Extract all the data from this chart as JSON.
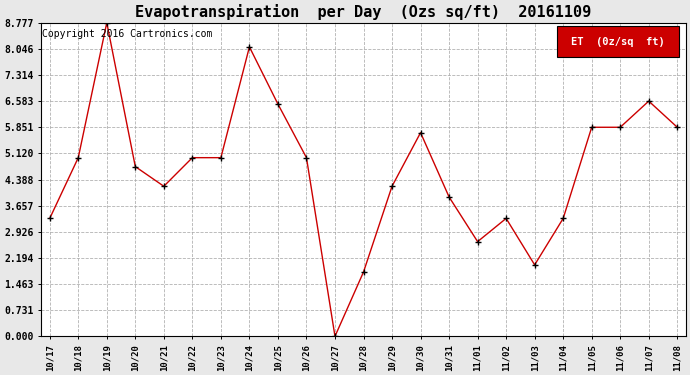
{
  "title": "Evapotranspiration  per Day  (Ozs sq/ft)  20161109",
  "copyright_text": "Copyright 2016 Cartronics.com",
  "legend_label": "ET  (0z/sq  ft)",
  "x_labels": [
    "10/17",
    "10/18",
    "10/19",
    "10/20",
    "10/21",
    "10/22",
    "10/23",
    "10/24",
    "10/25",
    "10/26",
    "10/27",
    "10/28",
    "10/29",
    "10/30",
    "10/31",
    "11/01",
    "11/02",
    "11/03",
    "11/04",
    "11/05",
    "11/06",
    "11/07",
    "11/08"
  ],
  "y_values": [
    3.3,
    5.0,
    8.777,
    4.75,
    4.2,
    5.0,
    5.0,
    8.1,
    6.5,
    5.0,
    0.0,
    1.8,
    4.2,
    5.7,
    3.9,
    2.65,
    3.3,
    2.0,
    3.3,
    5.851,
    5.851,
    6.583,
    5.851
  ],
  "y_ticks": [
    0.0,
    0.731,
    1.463,
    2.194,
    2.926,
    3.657,
    4.388,
    5.12,
    5.851,
    6.583,
    7.314,
    8.046,
    8.777
  ],
  "ylim": [
    0.0,
    8.777
  ],
  "line_color": "#cc0000",
  "marker_color": "black",
  "grid_color": "#aaaaaa",
  "bg_color": "#e8e8e8",
  "plot_bg_color": "#ffffff",
  "title_fontsize": 11,
  "copyright_fontsize": 7,
  "legend_bg_color": "#cc0000",
  "legend_text_color": "#ffffff",
  "legend_label_fontsize": 7.5
}
